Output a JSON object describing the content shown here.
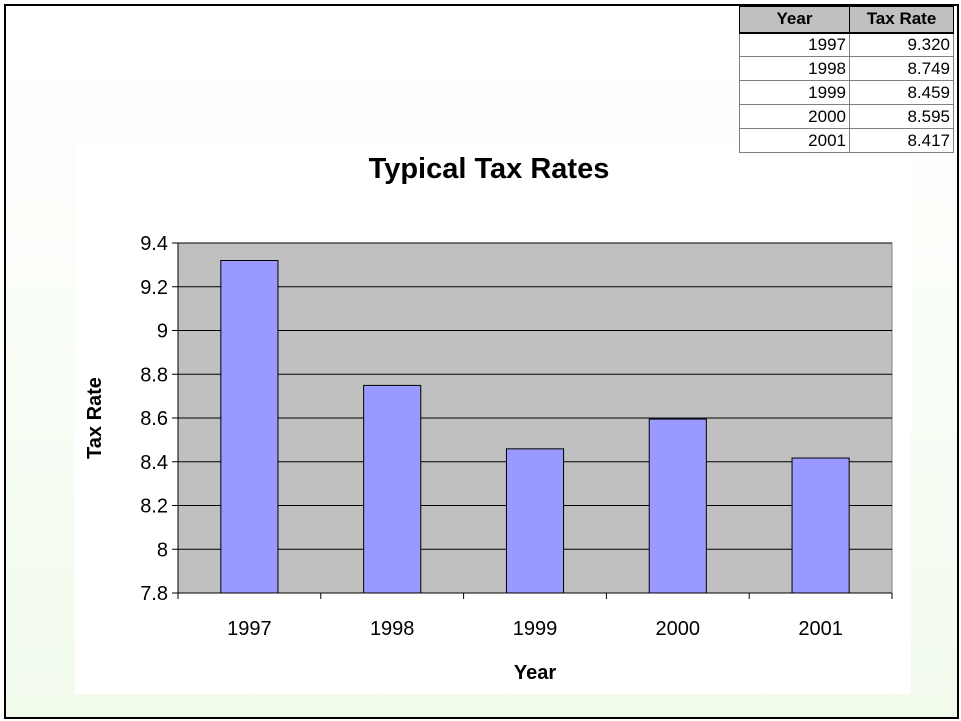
{
  "chart_data": {
    "type": "bar",
    "title": "Typical Tax Rates",
    "xlabel": "Year",
    "ylabel": "Tax Rate",
    "categories": [
      "1997",
      "1998",
      "1999",
      "2000",
      "2001"
    ],
    "values": [
      9.32,
      8.749,
      8.459,
      8.595,
      8.417
    ],
    "ylim": [
      7.8,
      9.4
    ],
    "yticks": [
      "7.8",
      "8",
      "8.2",
      "8.4",
      "8.6",
      "8.8",
      "9",
      "9.2",
      "9.4"
    ],
    "grid": true,
    "legend": "none",
    "colors": {
      "bar": "#9999ff",
      "plot_background": "#c0c0c0"
    }
  },
  "table": {
    "headers": [
      "Year",
      "Tax Rate"
    ],
    "rows": [
      [
        "1997",
        "9.320"
      ],
      [
        "1998",
        "8.749"
      ],
      [
        "1999",
        "8.459"
      ],
      [
        "2000",
        "8.595"
      ],
      [
        "2001",
        "8.417"
      ]
    ]
  }
}
